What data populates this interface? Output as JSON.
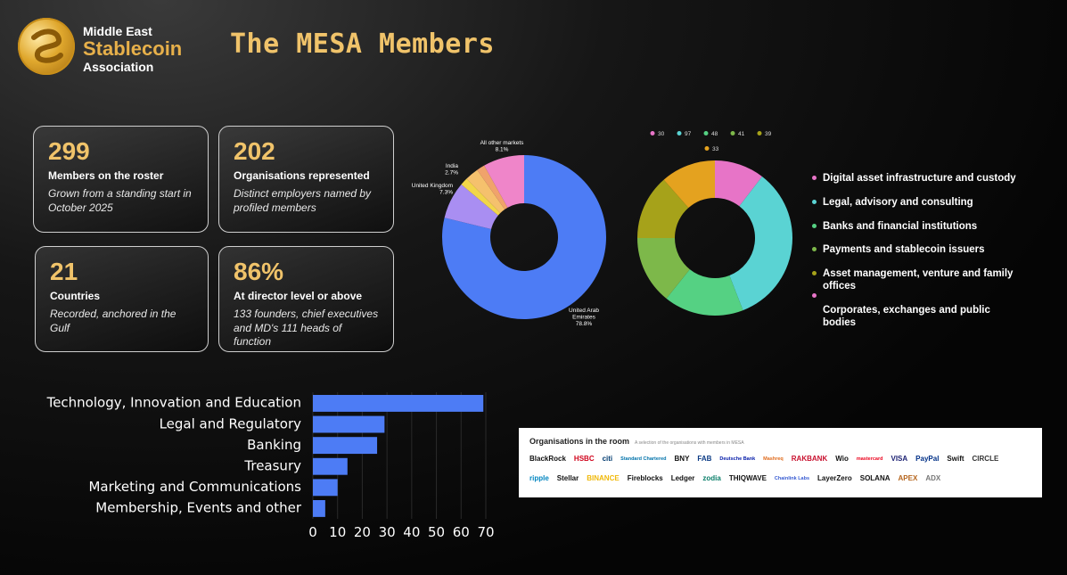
{
  "brand": {
    "line1": "Middle East",
    "line2": "Stablecoin",
    "line3": "Association"
  },
  "page_title": "The MESA Members",
  "cards": [
    {
      "num": "299",
      "label": "Members on the roster",
      "sub": "Grown from a standing start in October 2025"
    },
    {
      "num": "202",
      "label": "Organisations represented",
      "sub": "Distinct employers named by profiled members"
    },
    {
      "num": "21",
      "label": "Countries",
      "sub": "Recorded, anchored in the Gulf"
    },
    {
      "num": "86%",
      "label": "At director level or above",
      "sub": "133 founders, chief executives and MD's 111 heads of function"
    }
  ],
  "charts": {
    "geo": {
      "type": "pie",
      "labels": [
        "United Arab Emirates",
        "United Kingdom",
        "India",
        "All other markets"
      ],
      "label_lines": [
        [
          "United Arab",
          "Emirates",
          "78.8%"
        ],
        [
          "United Kingdom",
          "7.3%"
        ],
        [
          "India",
          "2.7%"
        ],
        [
          "All other markets",
          "8.1%"
        ]
      ],
      "values": [
        78.8,
        7.3,
        2.7,
        8.1
      ],
      "unlabeled_values": [
        1.5,
        1.6
      ],
      "colors": [
        "#4d7cf5",
        "#a98ef2",
        "#f5c16d",
        "#ef85c9",
        "#f2d64a",
        "#f0a36b"
      ]
    },
    "function": {
      "type": "pie",
      "legend_values": [
        "30",
        "97",
        "48",
        "41",
        "39",
        "33"
      ],
      "values": [
        30,
        97,
        48,
        41,
        39,
        33
      ],
      "colors": [
        "#e774c7",
        "#5ad3d3",
        "#55d183",
        "#7db84a",
        "#a6a21a",
        "#e4a21f"
      ],
      "labels": [
        "Digital asset infrastructure and custody",
        "Legal, advisory and consulting",
        "Banks and financial institutions",
        "Payments and stablecoin issuers",
        "Asset management, venture and family offices",
        "Corporates, exchanges and public bodies"
      ]
    },
    "departments": {
      "type": "bar",
      "categories": [
        "Technology, Innovation and Education",
        "Legal and Regulatory",
        "Banking",
        "Treasury",
        "Marketing and Communications",
        "Membership, Events and other"
      ],
      "values": [
        69,
        29,
        26,
        14,
        10,
        5
      ],
      "xticks": [
        "0",
        "10",
        "20",
        "30",
        "40",
        "50",
        "60",
        "70"
      ],
      "xlim": [
        0,
        70
      ],
      "color": "#4d7cf5"
    }
  },
  "orgs": {
    "title": "Organisations in the room",
    "subtitle": "A selection of the organisations with members in MESA",
    "row1": [
      "BlackRock",
      "HSBC",
      "citi",
      "Standard Chartered",
      "BNY",
      "FAB",
      "Deutsche Bank",
      "Mashreq",
      "RAKBANK",
      "Wio",
      "mastercard",
      "VISA",
      "PayPal",
      "Swift",
      "CIRCLE"
    ],
    "row2": [
      "ripple",
      "Stellar",
      "BINANCE",
      "Fireblocks",
      "Ledger",
      "zodia",
      "THIQWAVE",
      "Chainlink Labs",
      "LayerZero",
      "SOLANA",
      "APEX",
      "ADX"
    ]
  }
}
